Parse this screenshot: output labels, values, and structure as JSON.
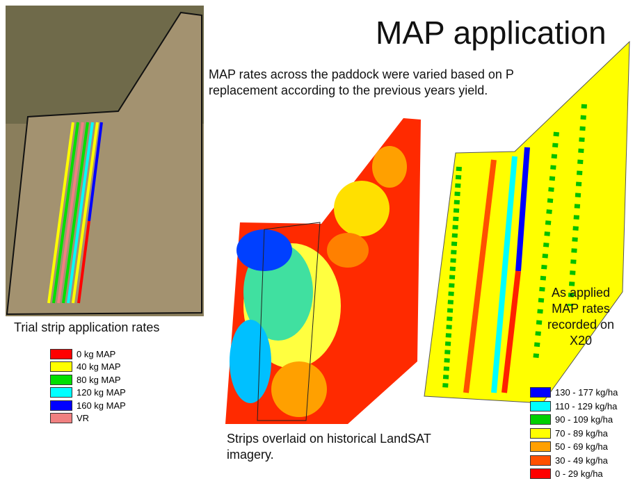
{
  "title": "MAP application",
  "description": "MAP rates across the paddock were varied based on P replacement according to the previous years yield.",
  "trial_map": {
    "caption": "Trial strip application rates",
    "legend": [
      {
        "label": "0 kg MAP",
        "color": "#ff0000"
      },
      {
        "label": "40 kg MAP",
        "color": "#ffff00"
      },
      {
        "label": "80 kg MAP",
        "color": "#00e000"
      },
      {
        "label": "120 kg MAP",
        "color": "#00ffff"
      },
      {
        "label": "160 kg MAP",
        "color": "#0000ff"
      },
      {
        "label": "VR",
        "color": "#f08080"
      }
    ]
  },
  "landsat_map": {
    "caption": "Strips overlaid on historical LandSAT imagery."
  },
  "applied_map": {
    "caption": "As applied MAP rates recorded on X20",
    "legend": [
      {
        "label": "130 - 177 kg/ha",
        "color": "#0000ff"
      },
      {
        "label": "110 - 129 kg/ha",
        "color": "#00ffff"
      },
      {
        "label": "90 - 109 kg/ha",
        "color": "#00d000"
      },
      {
        "label": "70 - 89 kg/ha",
        "color": "#ffff00"
      },
      {
        "label": "50 - 69 kg/ha",
        "color": "#ffa000"
      },
      {
        "label": "30 - 49 kg/ha",
        "color": "#ff5000"
      },
      {
        "label": "0 - 29 kg/ha",
        "color": "#ff0000"
      }
    ]
  }
}
